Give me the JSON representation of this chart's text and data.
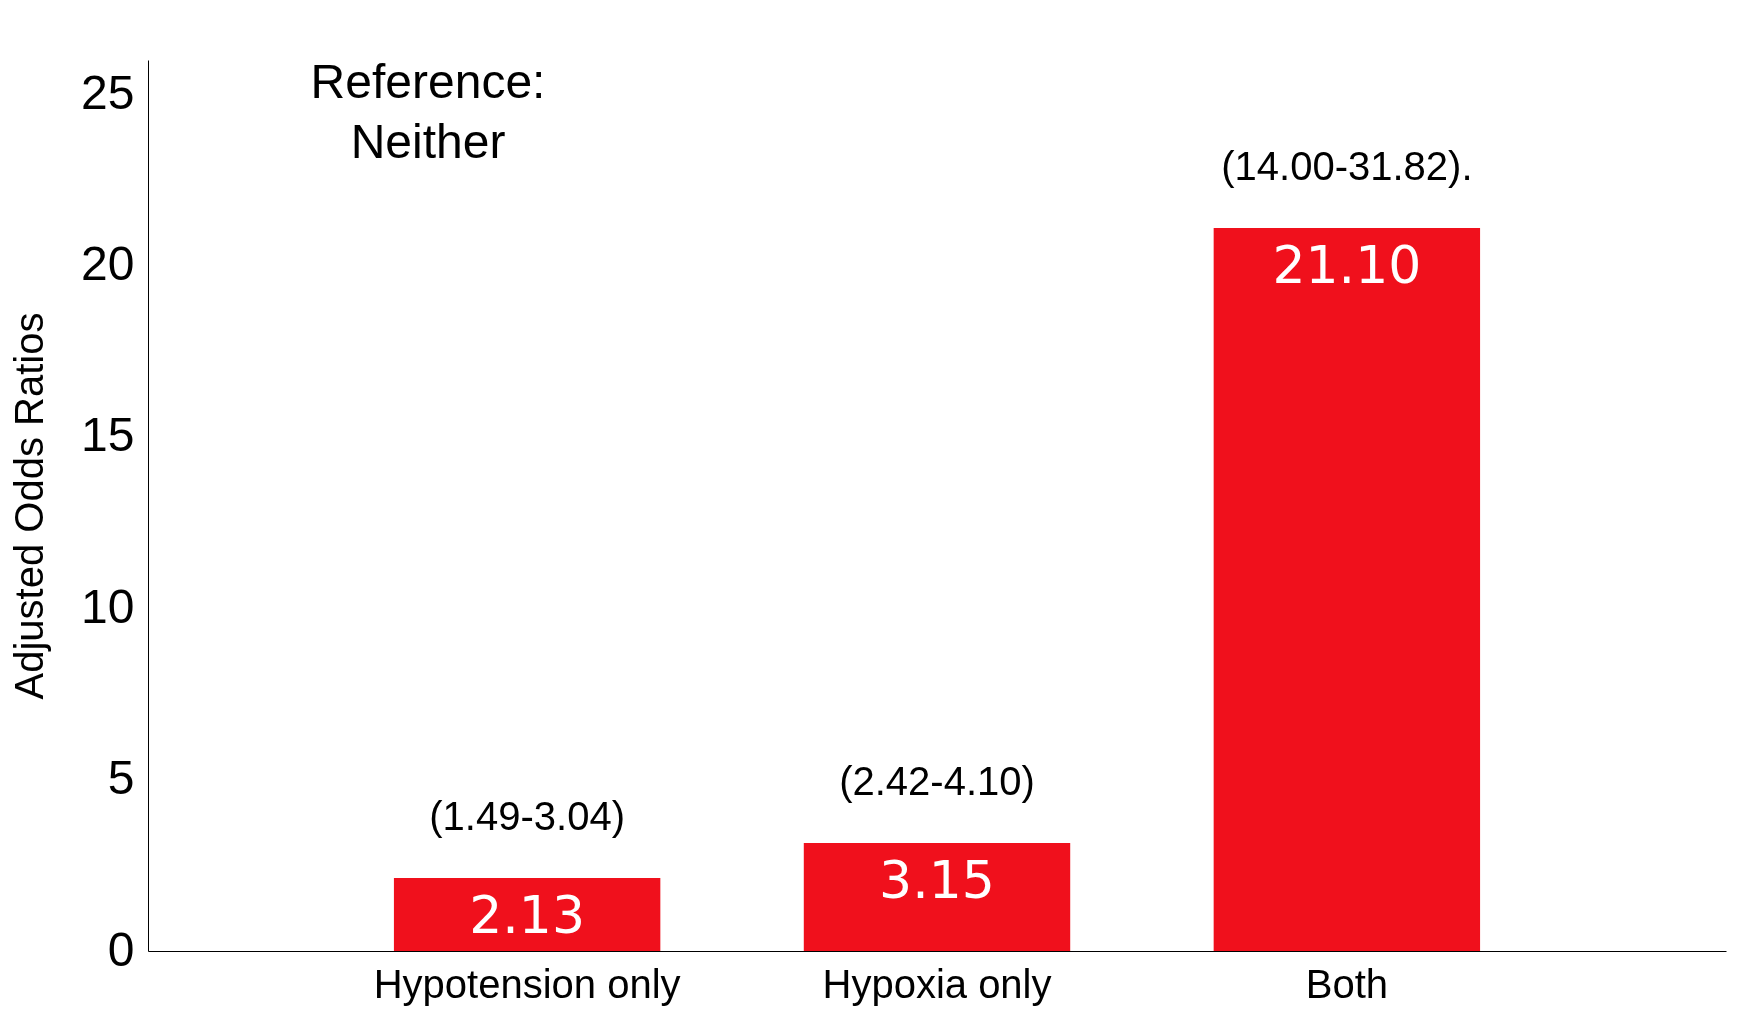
{
  "chart_data": {
    "type": "bar",
    "ylabel": "Adjusted Odds Ratios",
    "categories": [
      "Hypotension only",
      "Hypoxia only",
      "Both"
    ],
    "values": [
      2.13,
      3.15,
      21.1
    ],
    "value_labels": [
      "2.13",
      "3.15",
      "21.10"
    ],
    "color": "#f0101c",
    "ylim": [
      0,
      26
    ],
    "yticks": [
      0,
      5,
      10,
      15,
      20,
      25
    ],
    "grid": false,
    "annotations": [
      "Reference: Neither",
      {
        "text": "(1.49-3.04)",
        "x": "Hypotension only",
        "y": 2.13
      },
      {
        "text": "(2.42-4.10)",
        "x": "Hypoxia only",
        "y": 3.15
      },
      {
        "text": "(14.00-31.82).",
        "x": "Both",
        "y": 21.1
      }
    ]
  }
}
